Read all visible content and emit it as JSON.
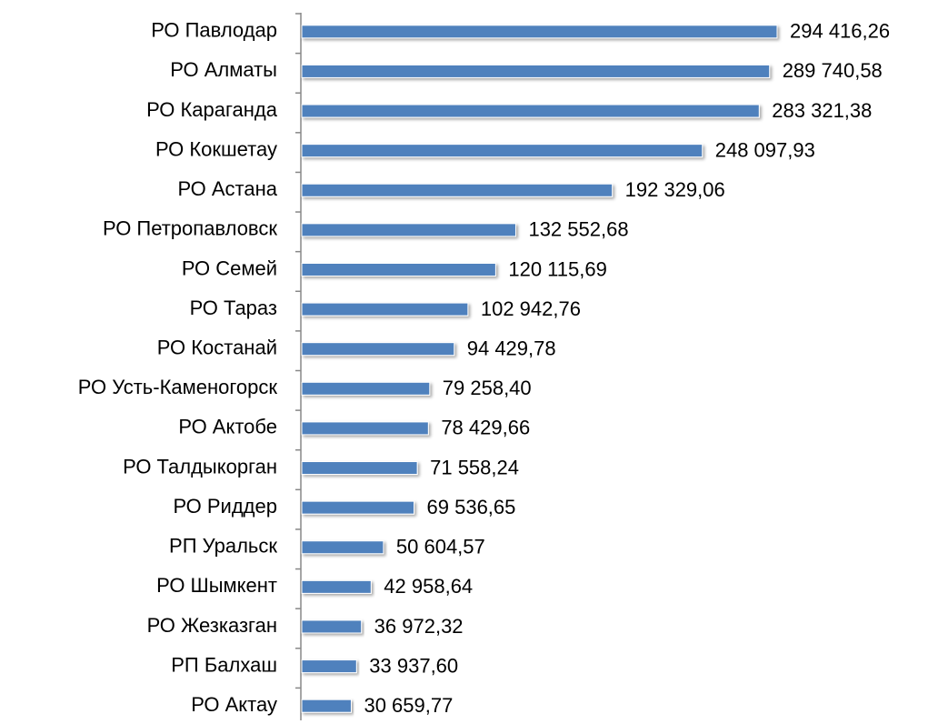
{
  "chart_data": {
    "type": "barh",
    "categories": [
      "РО Павлодар",
      "РО Алматы",
      "РО Караганда",
      "РО Кокшетау",
      "РО Астана",
      "РО Петропавловск",
      "РО Семей",
      "РО Тараз",
      "РО Костанай",
      "РО Усть-Каменогорск",
      "РО Актобе",
      "РО Талдыкорган",
      "РО Риддер",
      "РП Уральск",
      "РО Шымкент",
      "РО Жезказган",
      "РП Балхаш",
      "РО Актау"
    ],
    "values": [
      294416.26,
      289740.58,
      283321.38,
      248097.93,
      192329.06,
      132552.68,
      120115.69,
      102942.76,
      94429.78,
      79258.4,
      78429.66,
      71558.24,
      69536.65,
      50604.57,
      42958.64,
      36972.32,
      33937.6,
      30659.77
    ],
    "value_labels": [
      "294 416,26",
      "289 740,58",
      "283 321,38",
      "248 097,93",
      "192 329,06",
      "132 552,68",
      "120 115,69",
      "102 942,76",
      "94 429,78",
      "79 258,40",
      "78 429,66",
      "71 558,24",
      "69 536,65",
      "50 604,57",
      "42 958,64",
      "36 972,32",
      "33 937,60",
      "30 659,77"
    ],
    "color": "#4f81bd"
  }
}
